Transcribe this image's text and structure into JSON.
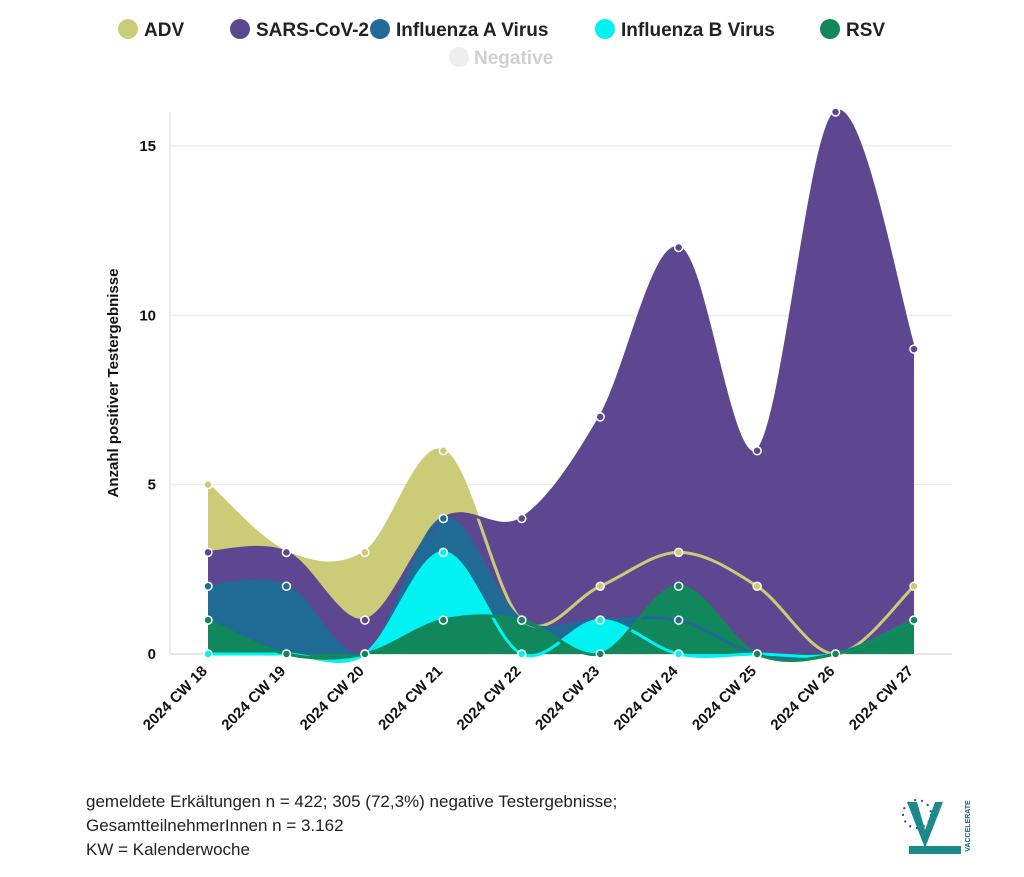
{
  "chart_data": {
    "type": "area",
    "y_axis_label": "Anzahl positiver Testergebnisse",
    "categories": [
      "2024 CW 18",
      "2024 CW 19",
      "2024 CW 20",
      "2024 CW 21",
      "2024 CW 22",
      "2024 CW 23",
      "2024 CW 24",
      "2024 CW 25",
      "2024 CW 26",
      "2024 CW 27"
    ],
    "series": [
      {
        "name": "ADV",
        "color": "#cccc78",
        "values": [
          5,
          3,
          3,
          6,
          1,
          2,
          3,
          2,
          0,
          2
        ]
      },
      {
        "name": "SARS-CoV-2",
        "color": "#5d4791",
        "values": [
          3,
          3,
          1,
          4,
          4,
          7,
          12,
          6,
          16,
          9
        ]
      },
      {
        "name": "Influenza A Virus",
        "color": "#1f6b95",
        "values": [
          2,
          2,
          0,
          4,
          1,
          1,
          1,
          0,
          0,
          1
        ]
      },
      {
        "name": "Influenza B Virus",
        "color": "#00f2f2",
        "values": [
          0,
          0,
          0,
          3,
          0,
          1,
          0,
          0,
          0,
          1
        ]
      },
      {
        "name": "RSV",
        "color": "#11875c",
        "values": [
          1,
          0,
          0,
          1,
          1,
          0,
          2,
          0,
          0,
          1
        ]
      }
    ],
    "hidden_legend_entries": [
      "Negative"
    ],
    "ylim": [
      0,
      16
    ],
    "yticks": [
      0,
      5,
      10,
      15
    ],
    "grid": true
  },
  "footnote": [
    "gemeldete Erkältungen n = 422; 305 (72,3%) negative Testergebnisse;",
    "GesamtteilnehmerInnen n = 3.162",
    "KW = Kalenderwoche"
  ],
  "logo": {
    "text": "VACCELERATE"
  }
}
